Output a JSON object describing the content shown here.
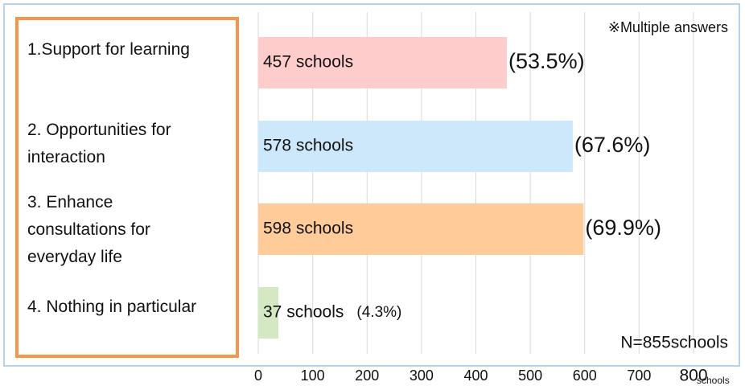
{
  "chart_data": {
    "type": "barh",
    "categories": [
      "1.Support for learning",
      "2. Opportunities for interaction",
      "3. Enhance consultations for everyday life",
      "4. Nothing in particular"
    ],
    "values": [
      457,
      578,
      598,
      37
    ],
    "value_labels": [
      "457 schools",
      "578 schools",
      "598 schools",
      "37 schools"
    ],
    "percent_labels": [
      "(53.5%)",
      "(67.6%)",
      "(69.9%)",
      "(4.3%)"
    ],
    "colors": [
      "#ffcccc",
      "#cce8fa",
      "#ffcc99",
      "#d5e8c4"
    ],
    "xlim": [
      0,
      800
    ],
    "xticks": [
      0,
      100,
      200,
      300,
      400,
      500,
      600,
      700,
      800
    ],
    "x_unit": "schools",
    "annotations": [
      "※Multiple answers",
      "N=855schools"
    ],
    "grid": true
  }
}
